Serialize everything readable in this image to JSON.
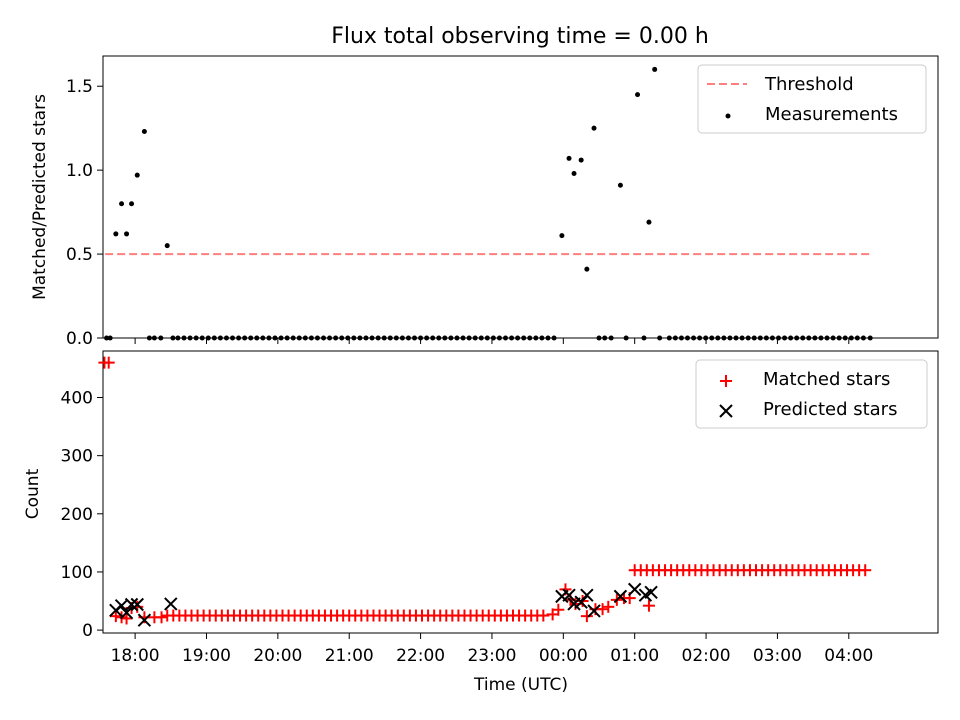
{
  "chart_data": [
    {
      "type": "scatter",
      "title": "Flux total observing time = 0.00 h",
      "xlabel": "",
      "ylabel": "Matched/Predicted stars",
      "xlim": [
        -0.4,
        11.3
      ],
      "ylim": [
        0,
        1.68
      ],
      "yticks": [
        0.0,
        0.5,
        1.0,
        1.5
      ],
      "ytick_labels": [
        "0.0",
        "0.5",
        "1.0",
        "1.5"
      ],
      "xticks": [
        0.05,
        1.05,
        2.05,
        3.05,
        4.05,
        5.05,
        6.05,
        7.05,
        8.05,
        9.05,
        10.05
      ],
      "grid": false,
      "legend": {
        "placement": "top-right",
        "entries": [
          "Threshold",
          "Measurements"
        ]
      },
      "threshold": {
        "name": "Threshold",
        "value": 0.5,
        "x_range": [
          -0.37,
          10.35
        ],
        "color": "#ff7f7f"
      },
      "series": [
        {
          "name": "Measurements",
          "color": "#000000",
          "points": [
            [
              -0.35,
              0
            ],
            [
              -0.3,
              0
            ],
            [
              -0.22,
              0.62
            ],
            [
              -0.14,
              0.8
            ],
            [
              -0.07,
              0.62
            ],
            [
              0,
              0.8
            ],
            [
              0.08,
              0.97
            ],
            [
              0.18,
              1.23
            ],
            [
              0.25,
              0
            ],
            [
              0.32,
              0
            ],
            [
              0.41,
              0
            ],
            [
              0.5,
              0.55
            ],
            [
              0.58,
              0
            ],
            [
              6.03,
              0.61
            ],
            [
              6.13,
              1.07
            ],
            [
              6.2,
              0.98
            ],
            [
              6.3,
              1.06
            ],
            [
              6.38,
              0.41
            ],
            [
              6.48,
              1.25
            ],
            [
              6.55,
              0
            ],
            [
              6.63,
              0
            ],
            [
              6.72,
              0
            ],
            [
              6.85,
              0.91
            ],
            [
              6.93,
              0
            ],
            [
              7.09,
              1.45
            ],
            [
              7.18,
              0
            ],
            [
              7.25,
              0.69
            ],
            [
              7.33,
              1.6
            ],
            [
              7.4,
              0
            ],
            [
              10.35,
              0
            ]
          ],
          "zero_run": {
            "from": 0.65,
            "to": 10.28,
            "step": 0.085,
            "value": 0,
            "skip_between": [
              5.98,
              7.45
            ]
          }
        }
      ]
    },
    {
      "type": "scatter",
      "title": "",
      "xlabel": "Time (UTC)",
      "ylabel": "Count",
      "xlim": [
        -0.4,
        11.3
      ],
      "ylim": [
        -5,
        480
      ],
      "yticks": [
        0,
        100,
        200,
        300,
        400
      ],
      "ytick_labels": [
        "0",
        "100",
        "200",
        "300",
        "400"
      ],
      "xticks": [
        0.05,
        1.05,
        2.05,
        3.05,
        4.05,
        5.05,
        6.05,
        7.05,
        8.05,
        9.05,
        10.05
      ],
      "xtick_labels": [
        "18:00",
        "19:00",
        "20:00",
        "21:00",
        "22:00",
        "23:00",
        "00:00",
        "01:00",
        "02:00",
        "03:00",
        "04:00"
      ],
      "grid": false,
      "legend": {
        "placement": "top-right",
        "entries": [
          "Matched stars",
          "Predicted stars"
        ]
      },
      "series": [
        {
          "name": "Matched stars",
          "marker": "plus",
          "color": "#ff0000",
          "points": [
            [
              -0.38,
              460
            ],
            [
              -0.32,
              460
            ],
            [
              -0.22,
              24
            ],
            [
              -0.14,
              22
            ],
            [
              -0.07,
              20
            ],
            [
              0,
              38
            ],
            [
              0.08,
              40
            ],
            [
              0.18,
              22
            ],
            [
              0.32,
              22
            ],
            [
              0.42,
              22
            ],
            [
              5.9,
              27
            ],
            [
              5.98,
              35
            ],
            [
              6.08,
              70
            ],
            [
              6.15,
              52
            ],
            [
              6.22,
              45
            ],
            [
              6.32,
              50
            ],
            [
              6.38,
              24
            ],
            [
              6.5,
              36
            ],
            [
              6.6,
              36
            ],
            [
              6.68,
              40
            ],
            [
              6.8,
              52
            ],
            [
              6.9,
              55
            ],
            [
              6.98,
              55
            ],
            [
              7.25,
              42
            ]
          ],
          "runs": [
            {
              "from": 0.5,
              "to": 5.85,
              "step": 0.085,
              "value": 25
            },
            {
              "from": 7.05,
              "to": 10.32,
              "step": 0.085,
              "value": 103
            }
          ]
        },
        {
          "name": "Predicted stars",
          "marker": "x",
          "color": "#000000",
          "points": [
            [
              -0.22,
              34
            ],
            [
              -0.14,
              42
            ],
            [
              -0.07,
              30
            ],
            [
              0,
              44
            ],
            [
              0.08,
              44
            ],
            [
              0.18,
              17
            ],
            [
              0.55,
              45
            ],
            [
              6.03,
              58
            ],
            [
              6.13,
              60
            ],
            [
              6.2,
              45
            ],
            [
              6.3,
              48
            ],
            [
              6.38,
              60
            ],
            [
              6.48,
              33
            ],
            [
              6.85,
              58
            ],
            [
              7.05,
              70
            ],
            [
              7.2,
              60
            ],
            [
              7.28,
              65
            ]
          ]
        }
      ]
    }
  ]
}
